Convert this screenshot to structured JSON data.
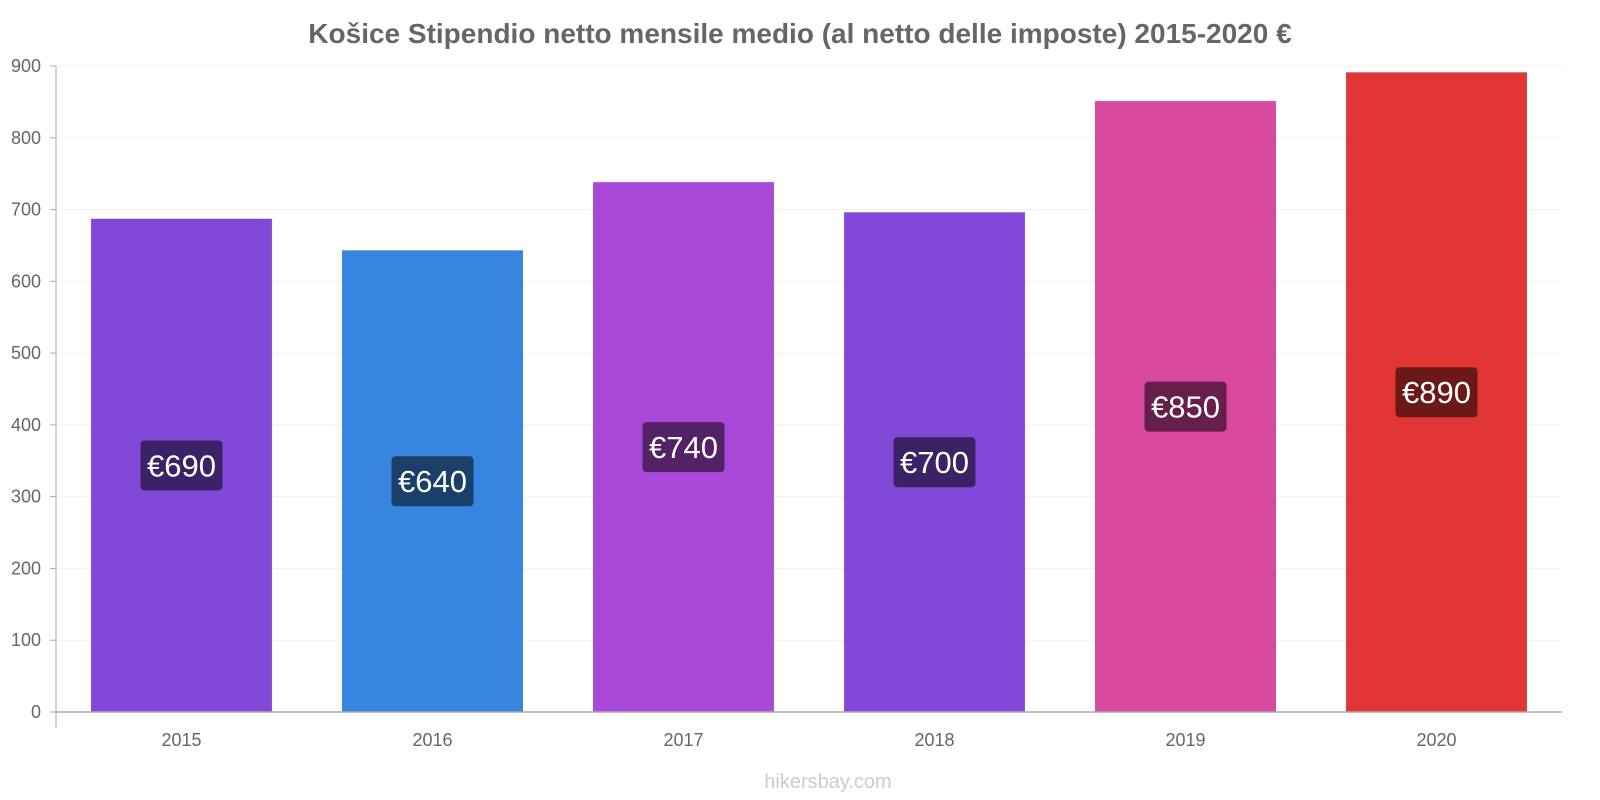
{
  "chart_data": {
    "type": "bar",
    "title": "Košice Stipendio netto mensile medio (al netto delle imposte) 2015-2020 €",
    "categories": [
      "2015",
      "2016",
      "2017",
      "2018",
      "2019",
      "2020"
    ],
    "values": [
      687,
      643,
      738,
      696,
      851,
      891
    ],
    "value_labels": [
      "€690",
      "€640",
      "€740",
      "€700",
      "€850",
      "€890"
    ],
    "bar_colors": [
      "#8249d9",
      "#3785df",
      "#a849d9",
      "#8249d9",
      "#d949a0",
      "#e23636"
    ],
    "label_bg_colors": [
      "#3d2166",
      "#1a3f69",
      "#522166",
      "#3d2166",
      "#661f4a",
      "#6a1818"
    ],
    "ylim": [
      0,
      900
    ],
    "yticks": [
      0,
      100,
      200,
      300,
      400,
      500,
      600,
      700,
      800,
      900
    ],
    "xlabel": "",
    "ylabel": "",
    "grid": true,
    "legend": "none"
  },
  "watermark": "hikersbay.com"
}
